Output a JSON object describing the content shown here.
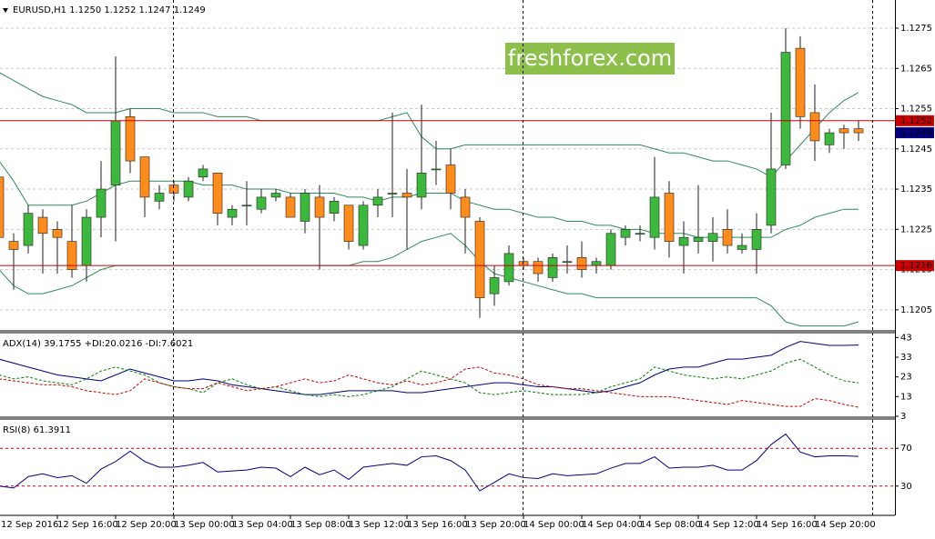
{
  "chart_data": [
    {
      "type": "candlestick",
      "title": "EURUSD,H1  1.1250 1.1252 1.1247 1.1249",
      "watermark": "freshforex.com",
      "categories": [
        "12 Sep 2016",
        null,
        null,
        null,
        "12 Sep 16:00",
        null,
        null,
        null,
        "12 Sep 20:00",
        null,
        null,
        null,
        "13 Sep 00:00",
        null,
        null,
        null,
        "13 Sep 04:00",
        null,
        null,
        null,
        "13 Sep 08:00",
        null,
        null,
        null,
        "13 Sep 12:00",
        null,
        null,
        null,
        "13 Sep 16:00",
        null,
        null,
        null,
        "13 Sep 20:00",
        null,
        null,
        null,
        "14 Sep 00:00",
        null,
        null,
        null,
        "14 Sep 04:00",
        null,
        null,
        null,
        "14 Sep 08:00",
        null,
        null,
        null,
        "14 Sep 12:00",
        null,
        null,
        null,
        "14 Sep 16:00",
        null,
        null,
        null,
        "14 Sep 20:00",
        null,
        null,
        null
      ],
      "open": [
        1.1238,
        1.1222,
        1.1221,
        1.1228,
        1.1225,
        1.1222,
        1.1216,
        1.1228,
        1.1236,
        1.1253,
        1.1243,
        1.1232,
        1.1236,
        1.1233,
        1.1238,
        1.1239,
        1.1228,
        1.1231,
        1.123,
        1.1233,
        1.1233,
        1.1227,
        1.1233,
        1.1229,
        1.1231,
        1.1221,
        1.1231,
        1.1234,
        1.1234,
        1.1233,
        1.124,
        1.1241,
        1.1233,
        1.1227,
        1.1209,
        1.1212,
        1.1217,
        1.1217,
        1.1213,
        1.1217,
        1.1218,
        1.1216,
        1.1216,
        1.1223,
        1.1224,
        1.1223,
        1.1234,
        1.1221,
        1.1222,
        1.1222,
        1.1225,
        1.122,
        1.122,
        1.1226,
        1.1241,
        1.127,
        1.1254,
        1.1246,
        1.125,
        1.125
      ],
      "high": [
        1.124,
        1.1224,
        1.1231,
        1.123,
        1.1227,
        1.1231,
        1.123,
        1.1242,
        1.1268,
        1.1255,
        1.1243,
        1.1236,
        1.1237,
        1.1238,
        1.1241,
        1.1239,
        1.1231,
        1.1237,
        1.1235,
        1.1235,
        1.1234,
        1.1235,
        1.1236,
        1.1233,
        1.1231,
        1.1232,
        1.1235,
        1.1254,
        1.124,
        1.1256,
        1.1247,
        1.1245,
        1.1235,
        1.1228,
        1.1216,
        1.1221,
        1.1218,
        1.1218,
        1.1219,
        1.1221,
        1.1222,
        1.1218,
        1.1225,
        1.1226,
        1.1226,
        1.1243,
        1.1237,
        1.1227,
        1.1236,
        1.1228,
        1.123,
        1.1224,
        1.1229,
        1.1254,
        1.1275,
        1.1273,
        1.1261,
        1.125,
        1.1251,
        1.1252
      ],
      "low": [
        1.1218,
        1.121,
        1.1219,
        1.1214,
        1.1214,
        1.1213,
        1.1212,
        1.1223,
        1.1222,
        1.1239,
        1.1228,
        1.123,
        1.1232,
        1.1232,
        1.1237,
        1.1226,
        1.1226,
        1.1226,
        1.1229,
        1.1232,
        1.1228,
        1.1224,
        1.1215,
        1.1227,
        1.122,
        1.122,
        1.1228,
        1.1228,
        1.122,
        1.123,
        1.1236,
        1.123,
        1.1219,
        1.1203,
        1.1206,
        1.1211,
        1.1215,
        1.1212,
        1.1212,
        1.1214,
        1.1213,
        1.1214,
        1.1215,
        1.1221,
        1.1222,
        1.122,
        1.1218,
        1.1214,
        1.1219,
        1.1217,
        1.1219,
        1.1219,
        1.1214,
        1.1224,
        1.124,
        1.125,
        1.1242,
        1.1244,
        1.1245,
        1.1247
      ],
      "close": [
        1.1223,
        1.122,
        1.1229,
        1.1224,
        1.1223,
        1.1215,
        1.1228,
        1.1235,
        1.1252,
        1.1242,
        1.1233,
        1.1234,
        1.1234,
        1.1237,
        1.124,
        1.1229,
        1.123,
        1.1231,
        1.1233,
        1.1234,
        1.1228,
        1.1234,
        1.1228,
        1.1232,
        1.1222,
        1.1231,
        1.1233,
        1.1234,
        1.1233,
        1.1239,
        1.124,
        1.1234,
        1.1228,
        1.1208,
        1.1213,
        1.1219,
        1.1216,
        1.1214,
        1.1218,
        1.1217,
        1.1215,
        1.1217,
        1.1224,
        1.1225,
        1.1224,
        1.1233,
        1.1222,
        1.1223,
        1.1223,
        1.1224,
        1.1221,
        1.1221,
        1.1225,
        1.124,
        1.1269,
        1.1253,
        1.1247,
        1.1249,
        1.1249,
        1.1249
      ],
      "up_color": "#3cb93c",
      "down_color": "#ff8c1a",
      "series": [
        {
          "color": "#2e8b57",
          "values": [
            1.1264,
            1.1262,
            1.126,
            1.1258,
            1.1257,
            1.1256,
            1.1254,
            1.1254,
            1.1254,
            1.1255,
            1.1255,
            1.1255,
            1.1254,
            1.1254,
            1.1254,
            1.1253,
            1.1253,
            1.1253,
            1.1252,
            1.1252,
            1.1252,
            1.1252,
            1.1252,
            1.1252,
            1.1252,
            1.1252,
            1.1252,
            1.1253,
            1.1254,
            1.1248,
            1.1245,
            1.1245,
            1.1246,
            1.1246,
            1.1246,
            1.1246,
            1.1246,
            1.1246,
            1.1246,
            1.1246,
            1.1246,
            1.1246,
            1.1246,
            1.1246,
            1.1246,
            1.1245,
            1.1244,
            1.1244,
            1.1243,
            1.1242,
            1.1242,
            1.1241,
            1.124,
            1.1238,
            1.1242,
            1.1246,
            1.125,
            1.1254,
            1.1257,
            1.1259
          ]
        },
        {
          "color": "#2e8b57",
          "values": [
            1.1242,
            1.1237,
            1.1231,
            1.1231,
            1.1231,
            1.1231,
            1.1232,
            1.1234,
            1.1236,
            1.1237,
            1.1237,
            1.1237,
            1.1237,
            1.1237,
            1.1236,
            1.1236,
            1.1236,
            1.1235,
            1.1235,
            1.1235,
            1.1234,
            1.1234,
            1.1234,
            1.1234,
            1.1233,
            1.1233,
            1.1232,
            1.1233,
            1.1233,
            1.1234,
            1.1234,
            1.1234,
            1.1232,
            1.1231,
            1.123,
            1.123,
            1.1229,
            1.1228,
            1.1228,
            1.1227,
            1.1227,
            1.1226,
            1.1226,
            1.1225,
            1.1225,
            1.1224,
            1.1224,
            1.1224,
            1.1223,
            1.1223,
            1.1223,
            1.1223,
            1.1223,
            1.1223,
            1.1225,
            1.1226,
            1.1228,
            1.1229,
            1.123,
            1.123
          ]
        },
        {
          "color": "#2e8b57",
          "values": [
            1.1215,
            1.1211,
            1.1209,
            1.1209,
            1.121,
            1.1211,
            1.1213,
            1.1215,
            1.1216,
            1.1216,
            1.1216,
            1.1216,
            1.1216,
            1.1216,
            1.1216,
            1.1216,
            1.1216,
            1.1216,
            1.1216,
            1.1216,
            1.1216,
            1.1216,
            1.1216,
            1.1216,
            1.1216,
            1.1217,
            1.1217,
            1.1218,
            1.122,
            1.1222,
            1.1223,
            1.1224,
            1.1221,
            1.1217,
            1.1214,
            1.1213,
            1.1212,
            1.1211,
            1.121,
            1.1209,
            1.1209,
            1.1208,
            1.1208,
            1.1208,
            1.1208,
            1.1208,
            1.1208,
            1.1208,
            1.1208,
            1.1208,
            1.1208,
            1.1208,
            1.1208,
            1.1206,
            1.1202,
            1.1201,
            1.1201,
            1.1201,
            1.1201,
            1.1202
          ]
        }
      ],
      "levels": [
        {
          "value": 1.1252,
          "color": "#cc0000"
        },
        {
          "value": 1.1216,
          "color": "#cc0000"
        }
      ],
      "last_price": 1.1249,
      "last_price_color": "#000080",
      "ylim": [
        1.12,
        1.1282
      ],
      "yticks": [
        1.1205,
        1.1215,
        1.1225,
        1.1235,
        1.1245,
        1.1255,
        1.1265,
        1.1275
      ],
      "grid": true,
      "grid_color": "#c8c8c8"
    },
    {
      "type": "line",
      "title": "ADX(14) 39.1755 +DI:20.0216 -DI:7.6021",
      "series": [
        {
          "color": "#000080",
          "dashed": false,
          "values": [
            32,
            30,
            28,
            26,
            24,
            23,
            22,
            21,
            24,
            27,
            25,
            23,
            21,
            21,
            22,
            21,
            19,
            18,
            17,
            16,
            15,
            14,
            14,
            15,
            16,
            16,
            16,
            16,
            15,
            15,
            16,
            17,
            18,
            19,
            20,
            20,
            19,
            18,
            18,
            17,
            16,
            15,
            16,
            18,
            20,
            24,
            27,
            28,
            28,
            30,
            32,
            32,
            33,
            34,
            38,
            41,
            40,
            39,
            39,
            39.1755
          ]
        },
        {
          "color": "#008000",
          "dashed": true,
          "values": [
            24,
            22,
            23,
            21,
            20,
            19,
            22,
            26,
            28,
            26,
            24,
            20,
            18,
            17,
            15,
            20,
            22,
            19,
            17,
            18,
            16,
            14,
            13,
            14,
            13,
            14,
            16,
            18,
            22,
            26,
            24,
            22,
            20,
            15,
            14,
            15,
            16,
            15,
            14,
            14,
            14,
            15,
            18,
            20,
            22,
            28,
            26,
            24,
            23,
            22,
            23,
            22,
            24,
            26,
            30,
            32,
            28,
            24,
            21,
            20.0216
          ]
        },
        {
          "color": "#cc0000",
          "dashed": true,
          "values": [
            22,
            21,
            20,
            19,
            19,
            18,
            16,
            15,
            14,
            16,
            22,
            20,
            18,
            17,
            17,
            20,
            18,
            16,
            17,
            18,
            20,
            22,
            20,
            21,
            24,
            22,
            20,
            19,
            21,
            19,
            20,
            22,
            27,
            28,
            25,
            24,
            22,
            19,
            18,
            17,
            17,
            16,
            15,
            14,
            13,
            13,
            13,
            12,
            11,
            10,
            9,
            11,
            10,
            9,
            8,
            8,
            12,
            11,
            9,
            7.6021
          ]
        }
      ],
      "ylim": [
        3,
        45
      ],
      "yticks": [
        3,
        13,
        23,
        33,
        43
      ],
      "grid": false
    },
    {
      "type": "line",
      "title": "RSI(8) 61.3911",
      "series": [
        {
          "color": "#000080",
          "dashed": false,
          "values": [
            30,
            28,
            40,
            43,
            39,
            41,
            33,
            48,
            56,
            67,
            56,
            50,
            50,
            52,
            55,
            45,
            46,
            47,
            50,
            49,
            40,
            50,
            42,
            47,
            37,
            50,
            52,
            54,
            52,
            61,
            62,
            57,
            47,
            25,
            34,
            43,
            39,
            38,
            43,
            41,
            42,
            43,
            49,
            54,
            54,
            61,
            49,
            50,
            50,
            52,
            47,
            47,
            57,
            74,
            85,
            66,
            61,
            62,
            62,
            61.3911
          ]
        }
      ],
      "ylim": [
        0,
        100
      ],
      "yticks": [
        30,
        70
      ],
      "grid": true,
      "grid_color": "#cc0000"
    }
  ]
}
